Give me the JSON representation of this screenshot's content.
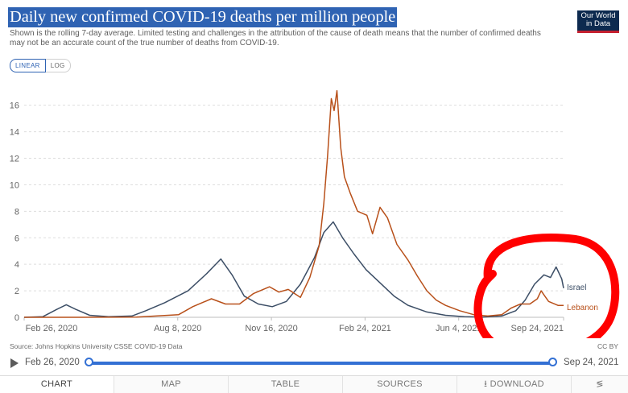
{
  "header": {
    "title": "Daily new confirmed COVID-19 deaths per million people",
    "subtitle": "Shown is the rolling 7-day average. Limited testing and challenges in the attribution of the cause of death means that the number of confirmed deaths may not be an accurate count of the true number of deaths from COVID-19.",
    "logo_line1": "Our World",
    "logo_line2": "in Data"
  },
  "scale_toggle": {
    "linear": "LINEAR",
    "log": "LOG"
  },
  "footer": {
    "source": "Source: Johns Hopkins University CSSE COVID-19 Data",
    "license": "CC BY"
  },
  "timeline": {
    "start": "Feb 26, 2020",
    "end": "Sep 24, 2021",
    "position": 1.0
  },
  "tabs": [
    "CHART",
    "MAP",
    "TABLE",
    "SOURCES",
    "DOWNLOAD",
    ""
  ],
  "colors": {
    "israel": "#3c4e66",
    "lebanon": "#b8501a",
    "annotation": "#ff0000",
    "accent": "#3370d4"
  },
  "chart_data": {
    "type": "line",
    "x_tick_labels": [
      "Feb 26, 2020",
      "Aug 8, 2020",
      "Nov 16, 2020",
      "Feb 24, 2021",
      "Jun 4, 2021",
      "Sep 24, 2021"
    ],
    "x_tick_days": [
      0,
      164,
      264,
      364,
      464,
      576
    ],
    "x_range_days": [
      0,
      576
    ],
    "ylim": [
      0,
      17.5
    ],
    "y_ticks": [
      0,
      2,
      4,
      6,
      8,
      10,
      12,
      14,
      16
    ],
    "grid": "horizontal-dashed",
    "series": [
      {
        "name": "Israel",
        "color_key": "israel",
        "points": [
          [
            0,
            0
          ],
          [
            20,
            0.05
          ],
          [
            35,
            0.6
          ],
          [
            45,
            0.95
          ],
          [
            55,
            0.6
          ],
          [
            70,
            0.15
          ],
          [
            90,
            0.05
          ],
          [
            115,
            0.1
          ],
          [
            130,
            0.5
          ],
          [
            150,
            1.1
          ],
          [
            175,
            2.0
          ],
          [
            195,
            3.3
          ],
          [
            210,
            4.4
          ],
          [
            222,
            3.2
          ],
          [
            235,
            1.6
          ],
          [
            250,
            1.0
          ],
          [
            265,
            0.8
          ],
          [
            280,
            1.2
          ],
          [
            295,
            2.5
          ],
          [
            310,
            4.5
          ],
          [
            320,
            6.4
          ],
          [
            330,
            7.2
          ],
          [
            340,
            6.0
          ],
          [
            352,
            4.8
          ],
          [
            365,
            3.6
          ],
          [
            380,
            2.6
          ],
          [
            395,
            1.6
          ],
          [
            410,
            0.9
          ],
          [
            430,
            0.4
          ],
          [
            450,
            0.15
          ],
          [
            470,
            0.05
          ],
          [
            490,
            0.02
          ],
          [
            510,
            0.1
          ],
          [
            525,
            0.5
          ],
          [
            535,
            1.3
          ],
          [
            545,
            2.5
          ],
          [
            555,
            3.2
          ],
          [
            562,
            3.0
          ],
          [
            568,
            3.8
          ],
          [
            574,
            2.9
          ],
          [
            576,
            2.2
          ]
        ]
      },
      {
        "name": "Lebanon",
        "color_key": "lebanon",
        "points": [
          [
            0,
            0
          ],
          [
            60,
            0
          ],
          [
            120,
            0.02
          ],
          [
            165,
            0.2
          ],
          [
            180,
            0.8
          ],
          [
            200,
            1.4
          ],
          [
            215,
            1.0
          ],
          [
            230,
            1.0
          ],
          [
            245,
            1.8
          ],
          [
            262,
            2.3
          ],
          [
            272,
            1.9
          ],
          [
            282,
            2.1
          ],
          [
            295,
            1.5
          ],
          [
            305,
            3.0
          ],
          [
            315,
            5.4
          ],
          [
            320,
            8.6
          ],
          [
            324,
            12.2
          ],
          [
            328,
            16.5
          ],
          [
            331,
            15.6
          ],
          [
            334,
            17.1
          ],
          [
            338,
            12.8
          ],
          [
            342,
            10.6
          ],
          [
            348,
            9.4
          ],
          [
            356,
            8.0
          ],
          [
            366,
            7.7
          ],
          [
            372,
            6.3
          ],
          [
            380,
            8.3
          ],
          [
            388,
            7.5
          ],
          [
            398,
            5.5
          ],
          [
            410,
            4.3
          ],
          [
            420,
            3.1
          ],
          [
            430,
            2.0
          ],
          [
            440,
            1.3
          ],
          [
            450,
            0.9
          ],
          [
            465,
            0.5
          ],
          [
            480,
            0.2
          ],
          [
            495,
            0.1
          ],
          [
            510,
            0.2
          ],
          [
            520,
            0.7
          ],
          [
            530,
            1.0
          ],
          [
            540,
            1.0
          ],
          [
            548,
            1.4
          ],
          [
            552,
            2.0
          ],
          [
            556,
            1.6
          ],
          [
            560,
            1.2
          ],
          [
            570,
            0.9
          ],
          [
            576,
            0.9
          ]
        ]
      }
    ]
  }
}
